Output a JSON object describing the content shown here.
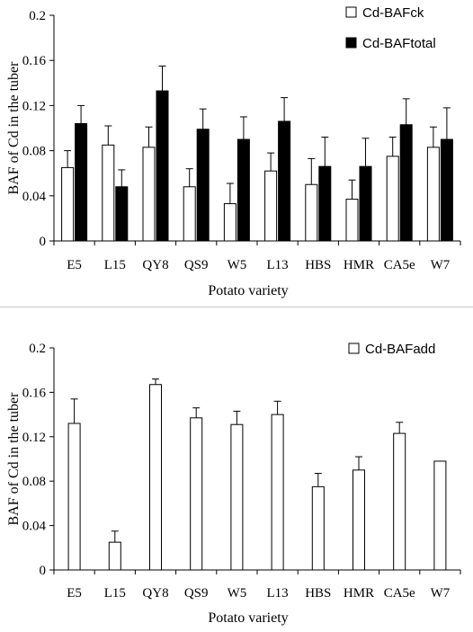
{
  "chart_data": [
    {
      "type": "bar",
      "categories": [
        "E5",
        "L15",
        "QY8",
        "QS9",
        "W5",
        "L13",
        "HBS",
        "HMR",
        "CA5e",
        "W7"
      ],
      "series": [
        {
          "name": "Cd-BAFck",
          "color": "#ffffff",
          "values": [
            0.065,
            0.085,
            0.083,
            0.048,
            0.033,
            0.062,
            0.05,
            0.037,
            0.075,
            0.083
          ],
          "errors": [
            0.015,
            0.017,
            0.018,
            0.016,
            0.018,
            0.016,
            0.023,
            0.017,
            0.017,
            0.018
          ]
        },
        {
          "name": "Cd-BAFtotal",
          "color": "#000000",
          "values": [
            0.104,
            0.048,
            0.133,
            0.099,
            0.09,
            0.106,
            0.066,
            0.066,
            0.103,
            0.09
          ],
          "errors": [
            0.016,
            0.015,
            0.022,
            0.018,
            0.02,
            0.021,
            0.026,
            0.025,
            0.023,
            0.028
          ]
        }
      ],
      "xlabel": "Potato variety",
      "ylabel": "BAF  of Cd in the tuber",
      "ylim": [
        0,
        0.2
      ],
      "yticks": [
        "0",
        "0.04",
        "0.08",
        "0.12",
        "0.16",
        "0.2"
      ],
      "legend": "top-right",
      "grid": false
    },
    {
      "type": "bar",
      "categories": [
        "E5",
        "L15",
        "QY8",
        "QS9",
        "W5",
        "L13",
        "HBS",
        "HMR",
        "CA5e",
        "W7"
      ],
      "series": [
        {
          "name": "Cd-BAFadd",
          "color": "#ffffff",
          "values": [
            0.132,
            0.025,
            0.167,
            0.137,
            0.131,
            0.14,
            0.075,
            0.09,
            0.123,
            0.098
          ],
          "errors": [
            0.022,
            0.01,
            0.005,
            0.009,
            0.012,
            0.012,
            0.012,
            0.012,
            0.01,
            0.0
          ]
        }
      ],
      "xlabel": "Potato variety",
      "ylabel": "BAF  of Cd in the tuber",
      "ylim": [
        0,
        0.2
      ],
      "yticks": [
        "0",
        "0.04",
        "0.08",
        "0.12",
        "0.16",
        "0.2"
      ],
      "legend": "top-right",
      "grid": false
    }
  ]
}
